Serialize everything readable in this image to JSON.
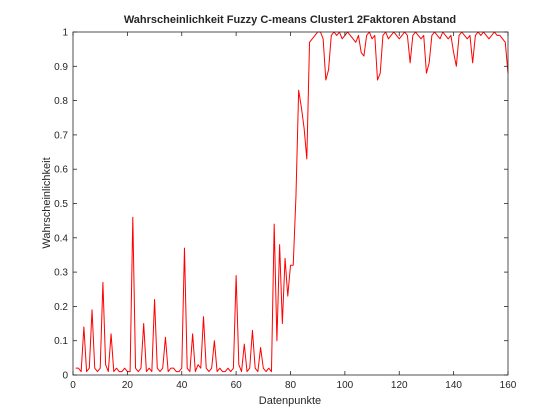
{
  "chart_data": {
    "type": "line",
    "title": "Wahrscheinlichkeit Fuzzy C-means Cluster1 2Faktoren Abstand",
    "xlabel": "Datenpunkte",
    "ylabel": "Wahrscheinlichkeit",
    "xlim": [
      0,
      160
    ],
    "ylim": [
      0,
      1
    ],
    "xticks": [
      0,
      20,
      40,
      60,
      80,
      100,
      120,
      140,
      160
    ],
    "yticks": [
      0,
      0.1,
      0.2,
      0.3,
      0.4,
      0.5,
      0.6,
      0.7,
      0.8,
      0.9,
      1
    ],
    "xtick_labels": [
      "0",
      "20",
      "40",
      "60",
      "80",
      "100",
      "120",
      "140",
      "160"
    ],
    "ytick_labels": [
      "0",
      "0.1",
      "0.2",
      "0.3",
      "0.4",
      "0.5",
      "0.6",
      "0.7",
      "0.8",
      "0.9",
      "1"
    ],
    "grid": false,
    "colors": {
      "line": "#ff0000",
      "axes": "#262626",
      "background": "#ffffff"
    },
    "series": [
      {
        "x": [
          1,
          2,
          3,
          4,
          5,
          6,
          7,
          8,
          9,
          10,
          11,
          12,
          13,
          14,
          15,
          16,
          17,
          18,
          19,
          20,
          21,
          22,
          23,
          24,
          25,
          26,
          27,
          28,
          29,
          30,
          31,
          32,
          33,
          34,
          35,
          36,
          37,
          38,
          39,
          40,
          41,
          42,
          43,
          44,
          45,
          46,
          47,
          48,
          49,
          50,
          51,
          52,
          53,
          54,
          55,
          56,
          57,
          58,
          59,
          60,
          61,
          62,
          63,
          64,
          65,
          66,
          67,
          68,
          69,
          70,
          71,
          72,
          73,
          74,
          75,
          76,
          77,
          78,
          79,
          80,
          81,
          82,
          83,
          84,
          85,
          86,
          87,
          88,
          89,
          90,
          91,
          92,
          93,
          94,
          95,
          96,
          97,
          98,
          99,
          100,
          101,
          102,
          103,
          104,
          105,
          106,
          107,
          108,
          109,
          110,
          111,
          112,
          113,
          114,
          115,
          116,
          117,
          118,
          119,
          120,
          121,
          122,
          123,
          124,
          125,
          126,
          127,
          128,
          129,
          130,
          131,
          132,
          133,
          134,
          135,
          136,
          137,
          138,
          139,
          140,
          141,
          142,
          143,
          144,
          145,
          146,
          147,
          148,
          149,
          150,
          151,
          152,
          153,
          154,
          155,
          156,
          157,
          158,
          159,
          160
        ],
        "values": [
          0.02,
          0.02,
          0.01,
          0.14,
          0.01,
          0.02,
          0.19,
          0.02,
          0.01,
          0.02,
          0.27,
          0.03,
          0.01,
          0.12,
          0.01,
          0.02,
          0.01,
          0.01,
          0.02,
          0.01,
          0.01,
          0.46,
          0.02,
          0.01,
          0.02,
          0.15,
          0.01,
          0.02,
          0.01,
          0.22,
          0.02,
          0.01,
          0.02,
          0.11,
          0.01,
          0.02,
          0.02,
          0.01,
          0.01,
          0.02,
          0.37,
          0.02,
          0.01,
          0.12,
          0.01,
          0.03,
          0.02,
          0.17,
          0.02,
          0.01,
          0.02,
          0.1,
          0.01,
          0.02,
          0.01,
          0.01,
          0.02,
          0.01,
          0.02,
          0.29,
          0.03,
          0.01,
          0.09,
          0.01,
          0.02,
          0.13,
          0.02,
          0.01,
          0.08,
          0.02,
          0.01,
          0.02,
          0.01,
          0.44,
          0.1,
          0.38,
          0.15,
          0.34,
          0.23,
          0.32,
          0.32,
          0.52,
          0.83,
          0.78,
          0.72,
          0.63,
          0.97,
          0.98,
          0.99,
          1.0,
          1.0,
          0.98,
          0.86,
          0.89,
          0.99,
          1.0,
          0.99,
          1.0,
          0.98,
          0.99,
          1.0,
          0.99,
          0.98,
          0.97,
          0.99,
          0.94,
          0.93,
          0.99,
          1.0,
          0.98,
          0.99,
          0.86,
          0.88,
          0.99,
          1.0,
          0.98,
          0.99,
          1.0,
          0.99,
          0.98,
          0.99,
          1.0,
          0.99,
          0.91,
          0.99,
          1.0,
          0.99,
          0.98,
          0.99,
          0.88,
          0.91,
          0.99,
          1.0,
          0.99,
          0.98,
          1.0,
          0.99,
          0.98,
          0.99,
          0.94,
          0.9,
          0.99,
          1.0,
          0.99,
          0.98,
          0.99,
          0.91,
          0.99,
          1.0,
          0.99,
          1.0,
          0.99,
          0.98,
          0.99,
          1.0,
          0.99,
          0.99,
          0.98,
          0.97,
          0.88
        ]
      }
    ]
  }
}
